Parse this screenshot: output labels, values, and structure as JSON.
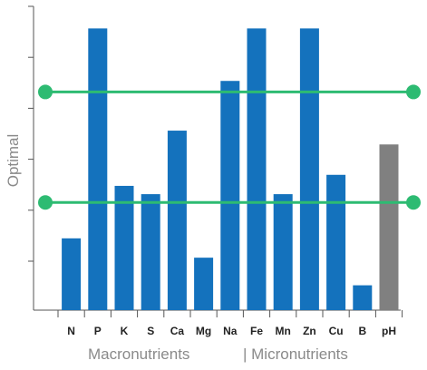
{
  "chart_data": {
    "type": "bar",
    "categories": [
      "N",
      "P",
      "K",
      "S",
      "Ca",
      "Mg",
      "Na",
      "Fe",
      "Mn",
      "Zn",
      "Cu",
      "B",
      "pH"
    ],
    "values": [
      2.6,
      10.2,
      4.5,
      4.2,
      6.5,
      1.9,
      8.3,
      10.2,
      4.2,
      10.2,
      4.9,
      0.9,
      6.0
    ],
    "bar_colors": [
      "#1472bd",
      "#1472bd",
      "#1472bd",
      "#1472bd",
      "#1472bd",
      "#1472bd",
      "#1472bd",
      "#1472bd",
      "#1472bd",
      "#1472bd",
      "#1472bd",
      "#1472bd",
      "#808080"
    ],
    "ylabel": "Optimal",
    "xgroup_labels": [
      "Macronutrients",
      "| Micronutrients"
    ],
    "ylim": [
      0,
      11
    ],
    "y_tick_count": 6,
    "optimal_range": [
      3.9,
      7.9
    ],
    "optimal_line_color": "#2dbb72",
    "grid": false
  }
}
